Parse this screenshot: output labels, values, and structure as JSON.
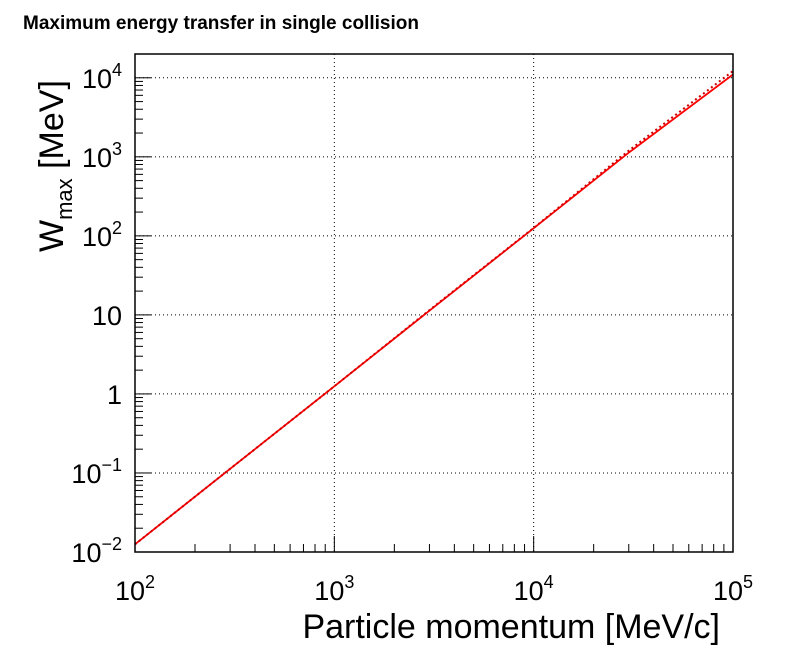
{
  "chart_data": {
    "type": "line",
    "title": "Maximum energy transfer in single collision",
    "xlabel": "Particle momentum [MeV/c]",
    "ylabel": {
      "main": "W",
      "subscript": "max",
      "unit": " [MeV]"
    },
    "x_scale": "log",
    "y_scale": "log",
    "xlim": [
      100,
      100000
    ],
    "ylim": [
      0.01,
      20000
    ],
    "grid": true,
    "x_ticks": [
      {
        "value": 100,
        "base": "10",
        "exp": "2"
      },
      {
        "value": 1000,
        "base": "10",
        "exp": "3"
      },
      {
        "value": 10000,
        "base": "10",
        "exp": "4"
      },
      {
        "value": 100000,
        "base": "10",
        "exp": "5"
      }
    ],
    "y_ticks": [
      {
        "value": 0.01,
        "base": "10",
        "exp": "−2"
      },
      {
        "value": 0.1,
        "base": "10",
        "exp": "−1"
      },
      {
        "value": 1,
        "base": "1",
        "exp": ""
      },
      {
        "value": 10,
        "base": "10",
        "exp": ""
      },
      {
        "value": 100,
        "base": "10",
        "exp": "2"
      },
      {
        "value": 1000,
        "base": "10",
        "exp": "3"
      },
      {
        "value": 10000,
        "base": "10",
        "exp": "4"
      }
    ],
    "series": [
      {
        "style": "solid",
        "color": "#ff0000",
        "x": [
          100,
          300,
          1000,
          3000,
          10000,
          30000,
          100000
        ],
        "y": [
          0.0125,
          0.113,
          1.25,
          11.3,
          125,
          1130,
          11000
        ]
      },
      {
        "style": "dotted",
        "color": "#cc0000",
        "x": [
          100,
          300,
          1000,
          3000,
          10000,
          30000,
          100000
        ],
        "y": [
          0.0125,
          0.113,
          1.25,
          11.5,
          126,
          1200,
          12200
        ]
      }
    ]
  }
}
